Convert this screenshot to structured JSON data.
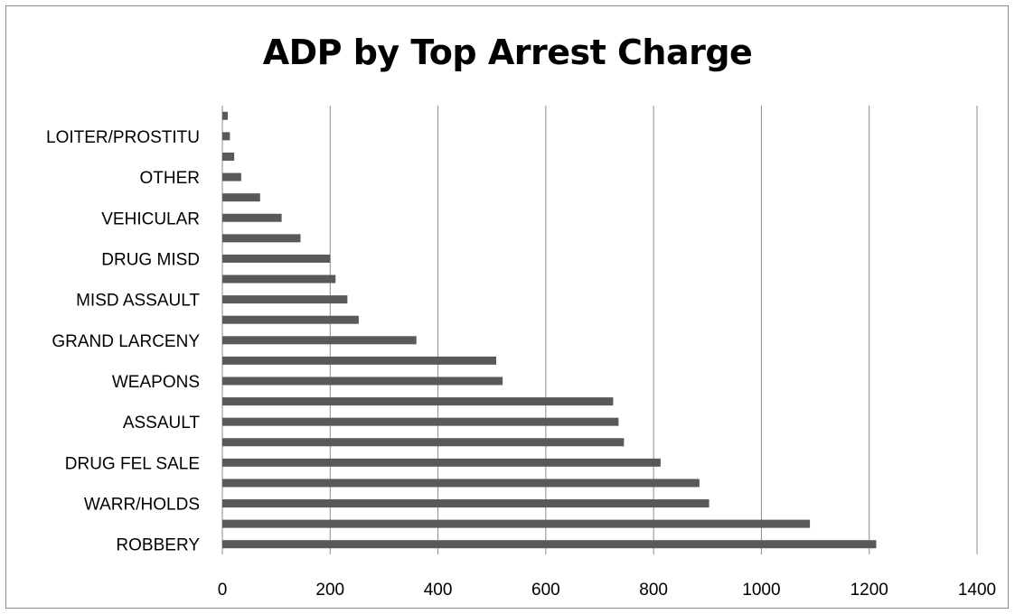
{
  "chart_data": {
    "type": "bar",
    "orientation": "horizontal",
    "title": "ADP by Top Arrest Charge",
    "xlabel": "",
    "ylabel": "",
    "xlim": [
      0,
      1400
    ],
    "x_ticks": [
      0,
      200,
      400,
      600,
      800,
      1000,
      1200,
      1400
    ],
    "grid": "vertical",
    "legend": "none",
    "bar_color": "#595959",
    "categories": [
      "ROBBERY",
      "",
      "WARR/HOLDS",
      "",
      "DRUG FEL SALE",
      "",
      "ASSAULT",
      "",
      "WEAPONS",
      "",
      "GRAND LARCENY",
      "",
      "MISD ASSAULT",
      "",
      "DRUG MISD",
      "",
      "VEHICULAR",
      "",
      "OTHER",
      "",
      "LOITER/PROSTITU",
      ""
    ],
    "values": [
      1213,
      1090,
      903,
      885,
      813,
      745,
      735,
      725,
      520,
      508,
      360,
      253,
      232,
      210,
      200,
      145,
      110,
      70,
      35,
      22,
      14,
      10
    ]
  }
}
